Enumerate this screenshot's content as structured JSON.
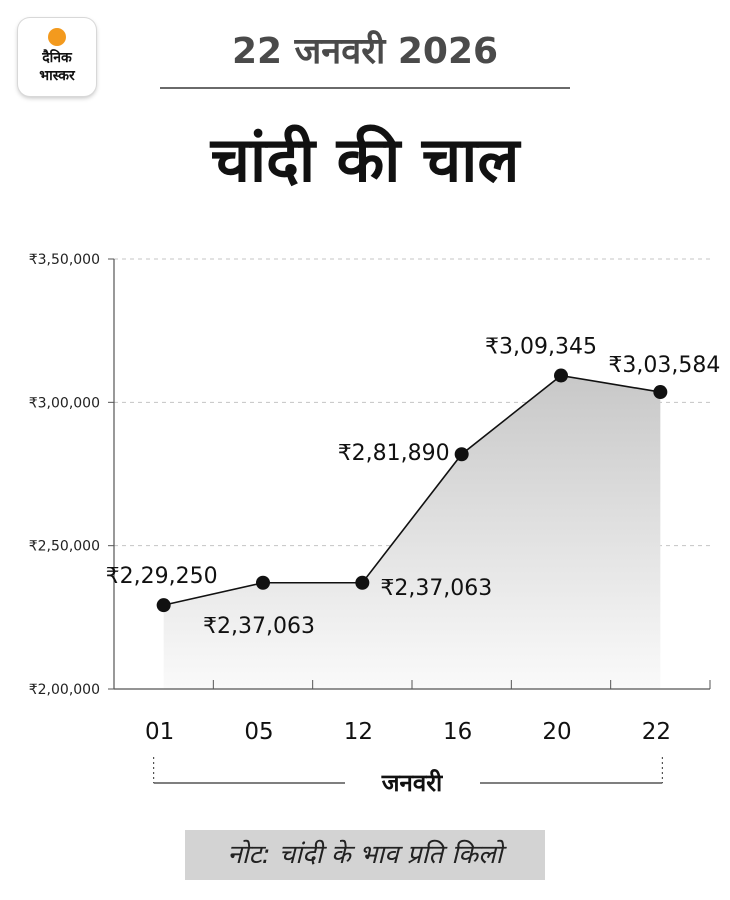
{
  "brand": {
    "line1": "दैनिक",
    "line2": "भास्कर",
    "sun_color": "#f39a1e"
  },
  "header": {
    "date": "22 जनवरी 2026",
    "title": "चांदी की चाल"
  },
  "chart_data": {
    "type": "area",
    "categories": [
      "01",
      "05",
      "12",
      "16",
      "20",
      "22"
    ],
    "values": [
      229250,
      237063,
      237063,
      281890,
      309345,
      303584
    ],
    "data_labels": [
      "₹2,29,250",
      "₹2,37,063",
      "₹2,37,063",
      "₹2,81,890",
      "₹3,09,345",
      "₹3,03,584"
    ],
    "y_ticks": [
      200000,
      250000,
      300000,
      350000
    ],
    "y_tick_labels": [
      "₹2,00,000",
      "₹2,50,000",
      "₹3,00,000",
      "₹3,50,000"
    ],
    "ylim": [
      200000,
      350000
    ],
    "xlabel": "जनवरी",
    "grid": true,
    "fill_color": "#c8c8c8",
    "line_color": "#111111"
  },
  "footer": {
    "note": "नोट: चांदी के भाव प्रति किलो"
  }
}
